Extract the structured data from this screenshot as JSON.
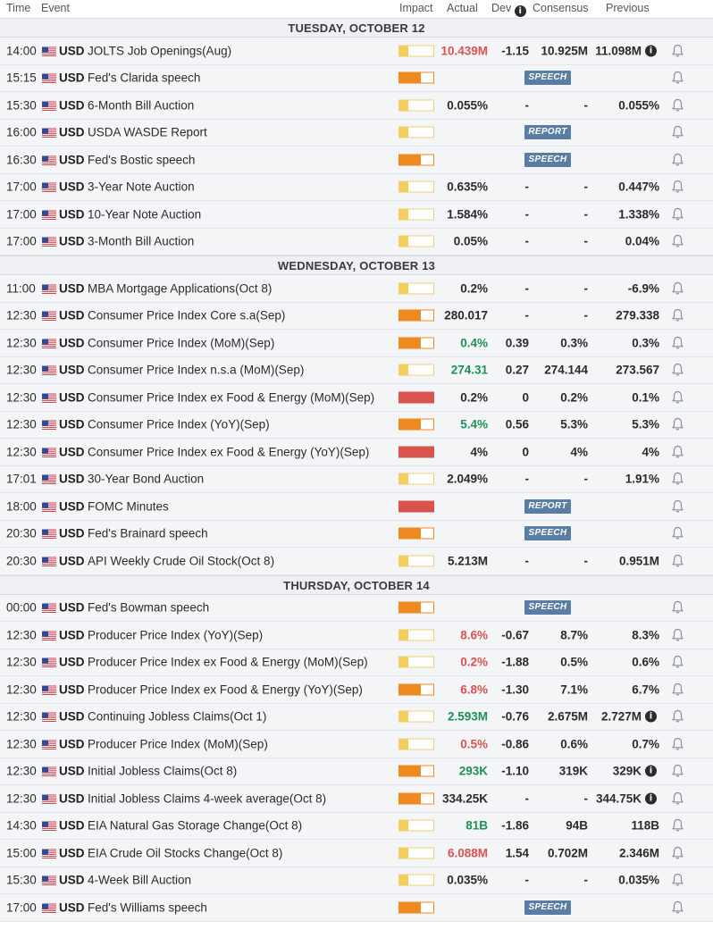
{
  "header": {
    "time": "Time",
    "event": "Event",
    "impact": "Impact",
    "actual": "Actual",
    "dev": "Dev",
    "consensus": "Consensus",
    "previous": "Previous"
  },
  "colors": {
    "red": "#d9534f",
    "green": "#1f8f5a",
    "tag": "#5a7ea3",
    "low": "#f5cd5b",
    "medium": "#ee8a1f",
    "high": "#d9534f"
  },
  "icons": {
    "flag": "us-flag-icon",
    "bell": "bell-icon",
    "info": "info-icon"
  },
  "sections": [
    {
      "day": "TUESDAY, OCTOBER 12",
      "rows": [
        {
          "time": "14:00",
          "currency": "USD",
          "event": "JOLTS Job Openings(Aug)",
          "impact": "low",
          "actual": "10.439M",
          "actual_color": "red",
          "dev": "-1.15",
          "consensus": "10.925M",
          "previous": "11.098M",
          "info": true
        },
        {
          "time": "15:15",
          "currency": "USD",
          "event": "Fed's Clarida speech",
          "impact": "medium",
          "tag": "SPEECH"
        },
        {
          "time": "15:30",
          "currency": "USD",
          "event": "6-Month Bill Auction",
          "impact": "low",
          "actual": "0.055%",
          "dev": "-",
          "consensus": "-",
          "previous": "0.055%"
        },
        {
          "time": "16:00",
          "currency": "USD",
          "event": "USDA WASDE Report",
          "impact": "low",
          "tag": "REPORT"
        },
        {
          "time": "16:30",
          "currency": "USD",
          "event": "Fed's Bostic speech",
          "impact": "medium",
          "tag": "SPEECH"
        },
        {
          "time": "17:00",
          "currency": "USD",
          "event": "3-Year Note Auction",
          "impact": "low",
          "actual": "0.635%",
          "dev": "-",
          "consensus": "-",
          "previous": "0.447%"
        },
        {
          "time": "17:00",
          "currency": "USD",
          "event": "10-Year Note Auction",
          "impact": "low",
          "actual": "1.584%",
          "dev": "-",
          "consensus": "-",
          "previous": "1.338%"
        },
        {
          "time": "17:00",
          "currency": "USD",
          "event": "3-Month Bill Auction",
          "impact": "low",
          "actual": "0.05%",
          "dev": "-",
          "consensus": "-",
          "previous": "0.04%"
        }
      ]
    },
    {
      "day": "WEDNESDAY, OCTOBER 13",
      "rows": [
        {
          "time": "11:00",
          "currency": "USD",
          "event": "MBA Mortgage Applications(Oct 8)",
          "impact": "low",
          "actual": "0.2%",
          "dev": "-",
          "consensus": "-",
          "previous": "-6.9%"
        },
        {
          "time": "12:30",
          "currency": "USD",
          "event": "Consumer Price Index Core s.a(Sep)",
          "impact": "medium",
          "actual": "280.017",
          "dev": "-",
          "consensus": "-",
          "previous": "279.338"
        },
        {
          "time": "12:30",
          "currency": "USD",
          "event": "Consumer Price Index (MoM)(Sep)",
          "impact": "medium",
          "actual": "0.4%",
          "actual_color": "green",
          "dev": "0.39",
          "consensus": "0.3%",
          "previous": "0.3%"
        },
        {
          "time": "12:30",
          "currency": "USD",
          "event": "Consumer Price Index n.s.a (MoM)(Sep)",
          "impact": "low",
          "actual": "274.31",
          "actual_color": "green",
          "dev": "0.27",
          "consensus": "274.144",
          "previous": "273.567"
        },
        {
          "time": "12:30",
          "currency": "USD",
          "event": "Consumer Price Index ex Food & Energy (MoM)(Sep)",
          "impact": "high",
          "actual": "0.2%",
          "dev": "0",
          "consensus": "0.2%",
          "previous": "0.1%"
        },
        {
          "time": "12:30",
          "currency": "USD",
          "event": "Consumer Price Index (YoY)(Sep)",
          "impact": "medium",
          "actual": "5.4%",
          "actual_color": "green",
          "dev": "0.56",
          "consensus": "5.3%",
          "previous": "5.3%"
        },
        {
          "time": "12:30",
          "currency": "USD",
          "event": "Consumer Price Index ex Food & Energy (YoY)(Sep)",
          "impact": "high",
          "actual": "4%",
          "dev": "0",
          "consensus": "4%",
          "previous": "4%"
        },
        {
          "time": "17:01",
          "currency": "USD",
          "event": "30-Year Bond Auction",
          "impact": "low",
          "actual": "2.049%",
          "dev": "-",
          "consensus": "-",
          "previous": "1.91%"
        },
        {
          "time": "18:00",
          "currency": "USD",
          "event": "FOMC Minutes",
          "impact": "high",
          "tag": "REPORT"
        },
        {
          "time": "20:30",
          "currency": "USD",
          "event": "Fed's Brainard speech",
          "impact": "medium",
          "tag": "SPEECH"
        },
        {
          "time": "20:30",
          "currency": "USD",
          "event": "API Weekly Crude Oil Stock(Oct 8)",
          "impact": "low",
          "actual": "5.213M",
          "dev": "-",
          "consensus": "-",
          "previous": "0.951M"
        }
      ]
    },
    {
      "day": "THURSDAY, OCTOBER 14",
      "rows": [
        {
          "time": "00:00",
          "currency": "USD",
          "event": "Fed's Bowman speech",
          "impact": "medium",
          "tag": "SPEECH"
        },
        {
          "time": "12:30",
          "currency": "USD",
          "event": "Producer Price Index (YoY)(Sep)",
          "impact": "low",
          "actual": "8.6%",
          "actual_color": "red",
          "dev": "-0.67",
          "consensus": "8.7%",
          "previous": "8.3%"
        },
        {
          "time": "12:30",
          "currency": "USD",
          "event": "Producer Price Index ex Food & Energy (MoM)(Sep)",
          "impact": "low",
          "actual": "0.2%",
          "actual_color": "red",
          "dev": "-1.88",
          "consensus": "0.5%",
          "previous": "0.6%"
        },
        {
          "time": "12:30",
          "currency": "USD",
          "event": "Producer Price Index ex Food & Energy (YoY)(Sep)",
          "impact": "medium",
          "actual": "6.8%",
          "actual_color": "red",
          "dev": "-1.30",
          "consensus": "7.1%",
          "previous": "6.7%"
        },
        {
          "time": "12:30",
          "currency": "USD",
          "event": "Continuing Jobless Claims(Oct 1)",
          "impact": "low",
          "actual": "2.593M",
          "actual_color": "green",
          "dev": "-0.76",
          "consensus": "2.675M",
          "previous": "2.727M",
          "info": true
        },
        {
          "time": "12:30",
          "currency": "USD",
          "event": "Producer Price Index (MoM)(Sep)",
          "impact": "low",
          "actual": "0.5%",
          "actual_color": "red",
          "dev": "-0.86",
          "consensus": "0.6%",
          "previous": "0.7%"
        },
        {
          "time": "12:30",
          "currency": "USD",
          "event": "Initial Jobless Claims(Oct 8)",
          "impact": "medium",
          "actual": "293K",
          "actual_color": "green",
          "dev": "-1.10",
          "consensus": "319K",
          "previous": "329K",
          "info": true
        },
        {
          "time": "12:30",
          "currency": "USD",
          "event": "Initial Jobless Claims 4-week average(Oct 8)",
          "impact": "medium",
          "actual": "334.25K",
          "dev": "-",
          "consensus": "-",
          "previous": "344.75K",
          "info": true
        },
        {
          "time": "14:30",
          "currency": "USD",
          "event": "EIA Natural Gas Storage Change(Oct 8)",
          "impact": "low",
          "actual": "81B",
          "actual_color": "green",
          "dev": "-1.86",
          "consensus": "94B",
          "previous": "118B"
        },
        {
          "time": "15:00",
          "currency": "USD",
          "event": "EIA Crude Oil Stocks Change(Oct 8)",
          "impact": "low",
          "actual": "6.088M",
          "actual_color": "red",
          "dev": "1.54",
          "consensus": "0.702M",
          "previous": "2.346M"
        },
        {
          "time": "15:30",
          "currency": "USD",
          "event": "4-Week Bill Auction",
          "impact": "low",
          "actual": "0.035%",
          "dev": "-",
          "consensus": "-",
          "previous": "0.035%"
        },
        {
          "time": "17:00",
          "currency": "USD",
          "event": "Fed's Williams speech",
          "impact": "medium",
          "tag": "SPEECH"
        }
      ]
    }
  ]
}
